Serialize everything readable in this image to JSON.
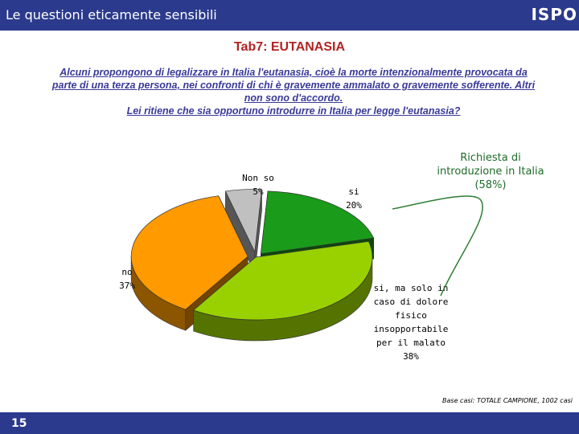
{
  "header": {
    "title": "Le questioni eticamente sensibili",
    "logo": "ISPO"
  },
  "tab_title": "Tab7: EUTANASIA",
  "question": [
    "Alcuni propongono di legalizzare in Italia l'eutanasia, cioè la morte intenzionalmente provocata da",
    "parte di una terza persona, nei confronti di chi è gravemente ammalato o gravemente sofferente. Altri",
    "non sono d'accordo.",
    "Lei ritiene che sia opportuno introdurre in Italia per legge l'eutanasia?"
  ],
  "annotation": "Richiesta di introduzione in Italia (58%)",
  "base_note": "Base casi: TOTALE CAMPIONE, 1002 casi",
  "page_number": "15",
  "colors": {
    "header": "#2b3a8c",
    "annotation": "#1f6b2a"
  },
  "chart_data": {
    "type": "pie",
    "slices": [
      {
        "label_lines": [
          "si",
          "20%"
        ],
        "value": 20,
        "color": "#1a9b1a"
      },
      {
        "label_lines": [
          "si, ma solo in",
          "caso di dolore",
          "fisico",
          "insopportabile",
          "per il malato",
          "38%"
        ],
        "value": 38,
        "color": "#99d100"
      },
      {
        "label_lines": [
          "no",
          "37%"
        ],
        "value": 37,
        "color": "#ff9a00"
      },
      {
        "label_lines": [
          "Non so",
          "5%"
        ],
        "value": 5,
        "color": "#c0c0c0"
      }
    ]
  }
}
